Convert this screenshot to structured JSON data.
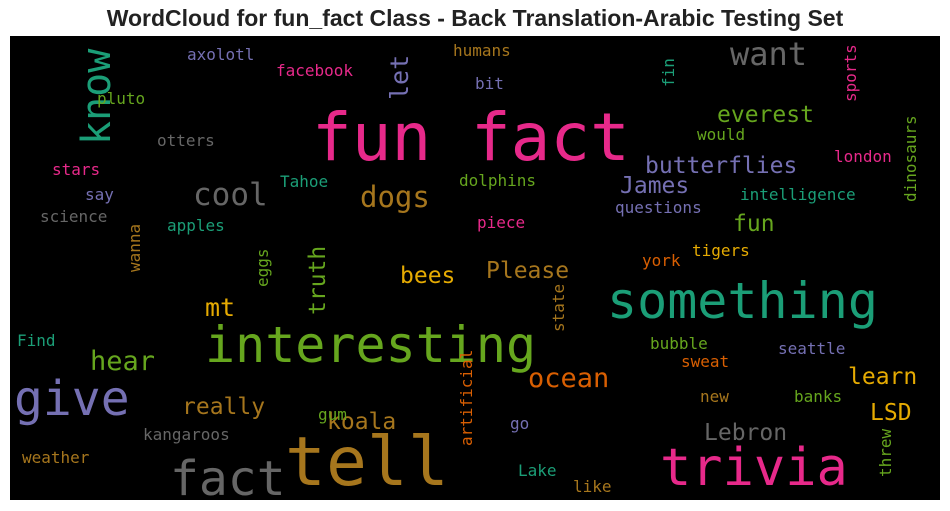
{
  "chart_data": {
    "type": "wordcloud",
    "title": "WordCloud for fun_fact Class - Back Translation-Arabic Testing Set",
    "background": "#000000",
    "words": [
      {
        "text": "fun fact",
        "color": "#e7298a"
      },
      {
        "text": "something",
        "color": "#1b9e77"
      },
      {
        "text": "interesting",
        "color": "#66a61e"
      },
      {
        "text": "tell",
        "color": "#a6761d"
      },
      {
        "text": "trivia",
        "color": "#e7298a"
      },
      {
        "text": "give",
        "color": "#7570b3"
      },
      {
        "text": "fact",
        "color": "#666666"
      },
      {
        "text": "know",
        "color": "#1b9e77"
      },
      {
        "text": "want",
        "color": "#666666"
      },
      {
        "text": "cool",
        "color": "#666666"
      },
      {
        "text": "dogs",
        "color": "#a6761d"
      },
      {
        "text": "everest",
        "color": "#66a61e"
      },
      {
        "text": "butterflies",
        "color": "#7570b3"
      },
      {
        "text": "James",
        "color": "#7570b3"
      },
      {
        "text": "fun",
        "color": "#66a61e"
      },
      {
        "text": "let",
        "color": "#7570b3"
      },
      {
        "text": "hear",
        "color": "#66a61e"
      },
      {
        "text": "mt",
        "color": "#e6ab02"
      },
      {
        "text": "truth",
        "color": "#66a61e"
      },
      {
        "text": "bees",
        "color": "#e6ab02"
      },
      {
        "text": "Please",
        "color": "#a6761d"
      },
      {
        "text": "ocean",
        "color": "#d95f02"
      },
      {
        "text": "really",
        "color": "#a6761d"
      },
      {
        "text": "koala",
        "color": "#a6761d"
      },
      {
        "text": "learn",
        "color": "#e6ab02"
      },
      {
        "text": "LSD",
        "color": "#e6ab02"
      },
      {
        "text": "Lebron",
        "color": "#666666"
      },
      {
        "text": "axolotl",
        "color": "#7570b3"
      },
      {
        "text": "facebook",
        "color": "#e7298a"
      },
      {
        "text": "humans",
        "color": "#a6761d"
      },
      {
        "text": "bit",
        "color": "#7570b3"
      },
      {
        "text": "fin",
        "color": "#1b9e77"
      },
      {
        "text": "sports",
        "color": "#e7298a"
      },
      {
        "text": "pluto",
        "color": "#66a61e"
      },
      {
        "text": "otters",
        "color": "#666666"
      },
      {
        "text": "would",
        "color": "#66a61e"
      },
      {
        "text": "london",
        "color": "#e7298a"
      },
      {
        "text": "dinosaurs",
        "color": "#66a61e"
      },
      {
        "text": "stars",
        "color": "#e7298a"
      },
      {
        "text": "Tahoe",
        "color": "#1b9e77"
      },
      {
        "text": "dolphins",
        "color": "#66a61e"
      },
      {
        "text": "say",
        "color": "#7570b3"
      },
      {
        "text": "intelligence",
        "color": "#1b9e77"
      },
      {
        "text": "science",
        "color": "#666666"
      },
      {
        "text": "questions",
        "color": "#7570b3"
      },
      {
        "text": "apples",
        "color": "#1b9e77"
      },
      {
        "text": "piece",
        "color": "#e7298a"
      },
      {
        "text": "wanna",
        "color": "#a6761d"
      },
      {
        "text": "eggs",
        "color": "#66a61e"
      },
      {
        "text": "tigers",
        "color": "#e6ab02"
      },
      {
        "text": "york",
        "color": "#d95f02"
      },
      {
        "text": "state",
        "color": "#a6761d"
      },
      {
        "text": "Find",
        "color": "#1b9e77"
      },
      {
        "text": "bubble",
        "color": "#66a61e"
      },
      {
        "text": "sweat",
        "color": "#d95f02"
      },
      {
        "text": "seattle",
        "color": "#7570b3"
      },
      {
        "text": "artificial",
        "color": "#d95f02"
      },
      {
        "text": "new",
        "color": "#a6761d"
      },
      {
        "text": "banks",
        "color": "#66a61e"
      },
      {
        "text": "gum",
        "color": "#66a61e"
      },
      {
        "text": "go",
        "color": "#7570b3"
      },
      {
        "text": "kangaroos",
        "color": "#666666"
      },
      {
        "text": "weather",
        "color": "#a6761d"
      },
      {
        "text": "threw",
        "color": "#66a61e"
      },
      {
        "text": "Lake",
        "color": "#1b9e77"
      },
      {
        "text": "like",
        "color": "#a6761d"
      }
    ]
  }
}
